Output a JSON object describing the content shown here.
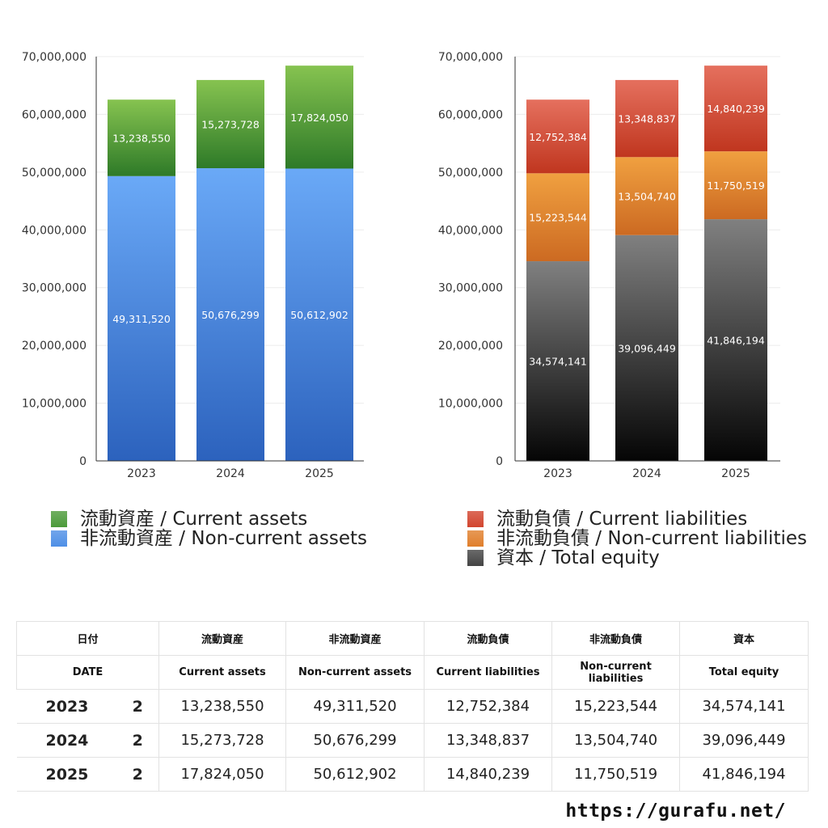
{
  "chart_data": [
    {
      "type": "bar",
      "stacked": true,
      "categories": [
        "2023",
        "2024",
        "2025"
      ],
      "ylim": [
        0,
        70000000
      ],
      "yticks": [
        "0",
        "10,000,000",
        "20,000,000",
        "30,000,000",
        "40,000,000",
        "50,000,000",
        "60,000,000",
        "70,000,000"
      ],
      "grid": true,
      "series": [
        {
          "name": "非流動資産 / Non-current assets",
          "values": [
            49311520,
            50676299,
            50612902
          ],
          "labels": [
            "49,311,520",
            "50,676,299",
            "50,612,902"
          ],
          "color": "#4e8fe6",
          "color_top": "#6aa9f7",
          "color_bottom": "#2c62bd"
        },
        {
          "name": "流動資産 / Current assets",
          "values": [
            13238550,
            15273728,
            17824050
          ],
          "labels": [
            "13,238,550",
            "15,273,728",
            "17,824,050"
          ],
          "color": "#4c9b3a",
          "color_top": "#86c350",
          "color_bottom": "#2e7a28"
        }
      ],
      "legend": "bottom"
    },
    {
      "type": "bar",
      "stacked": true,
      "categories": [
        "2023",
        "2024",
        "2025"
      ],
      "ylim": [
        0,
        70000000
      ],
      "yticks": [
        "0",
        "10,000,000",
        "20,000,000",
        "30,000,000",
        "40,000,000",
        "50,000,000",
        "60,000,000",
        "70,000,000"
      ],
      "grid": true,
      "series": [
        {
          "name": "資本 / Total equity",
          "values": [
            34574141,
            39096449,
            41846194
          ],
          "labels": [
            "34,574,141",
            "39,096,449",
            "41,846,194"
          ],
          "color": "#444444",
          "color_top": "#808080",
          "color_bottom": "#050505"
        },
        {
          "name": "非流動負債 / Non-current liabilities",
          "values": [
            15223544,
            13504740,
            11750519
          ],
          "labels": [
            "15,223,544",
            "13,504,740",
            "11,750,519"
          ],
          "color": "#e07f2c",
          "color_top": "#f0a040",
          "color_bottom": "#cc6a22"
        },
        {
          "name": "流動負債 / Current liabilities",
          "values": [
            12752384,
            13348837,
            14840239
          ],
          "labels": [
            "12,752,384",
            "13,348,837",
            "14,840,239"
          ],
          "color": "#d2452f",
          "color_top": "#e5705e",
          "color_bottom": "#c0361f"
        }
      ],
      "legend": "bottom"
    }
  ],
  "legends": {
    "left": [
      {
        "label": "流動資産 / Current assets",
        "color": "#4c9b3a"
      },
      {
        "label": "非流動資産 / Non-current assets",
        "color": "#4e8fe6"
      }
    ],
    "right": [
      {
        "label": "流動負債 / Current liabilities",
        "color": "#d2452f"
      },
      {
        "label": "非流動負債 / Non-current liabilities",
        "color": "#e07f2c"
      },
      {
        "label": "資本 / Total equity",
        "color": "#444444"
      }
    ]
  },
  "table": {
    "header_jp": [
      "日付",
      "流動資産",
      "非流動資産",
      "流動負債",
      "非流動負債",
      "資本"
    ],
    "header_en": [
      "DATE",
      "Current assets",
      "Non-current assets",
      "Current liabilities",
      "Non-current liabilities",
      "Total equity"
    ],
    "rows": [
      {
        "year": "2023",
        "count": "2",
        "values": [
          "13,238,550",
          "49,311,520",
          "12,752,384",
          "15,223,544",
          "34,574,141"
        ]
      },
      {
        "year": "2024",
        "count": "2",
        "values": [
          "15,273,728",
          "50,676,299",
          "13,348,837",
          "13,504,740",
          "39,096,449"
        ]
      },
      {
        "year": "2025",
        "count": "2",
        "values": [
          "17,824,050",
          "50,612,902",
          "14,840,239",
          "11,750,519",
          "41,846,194"
        ]
      }
    ]
  },
  "source": "https://gurafu.net/"
}
